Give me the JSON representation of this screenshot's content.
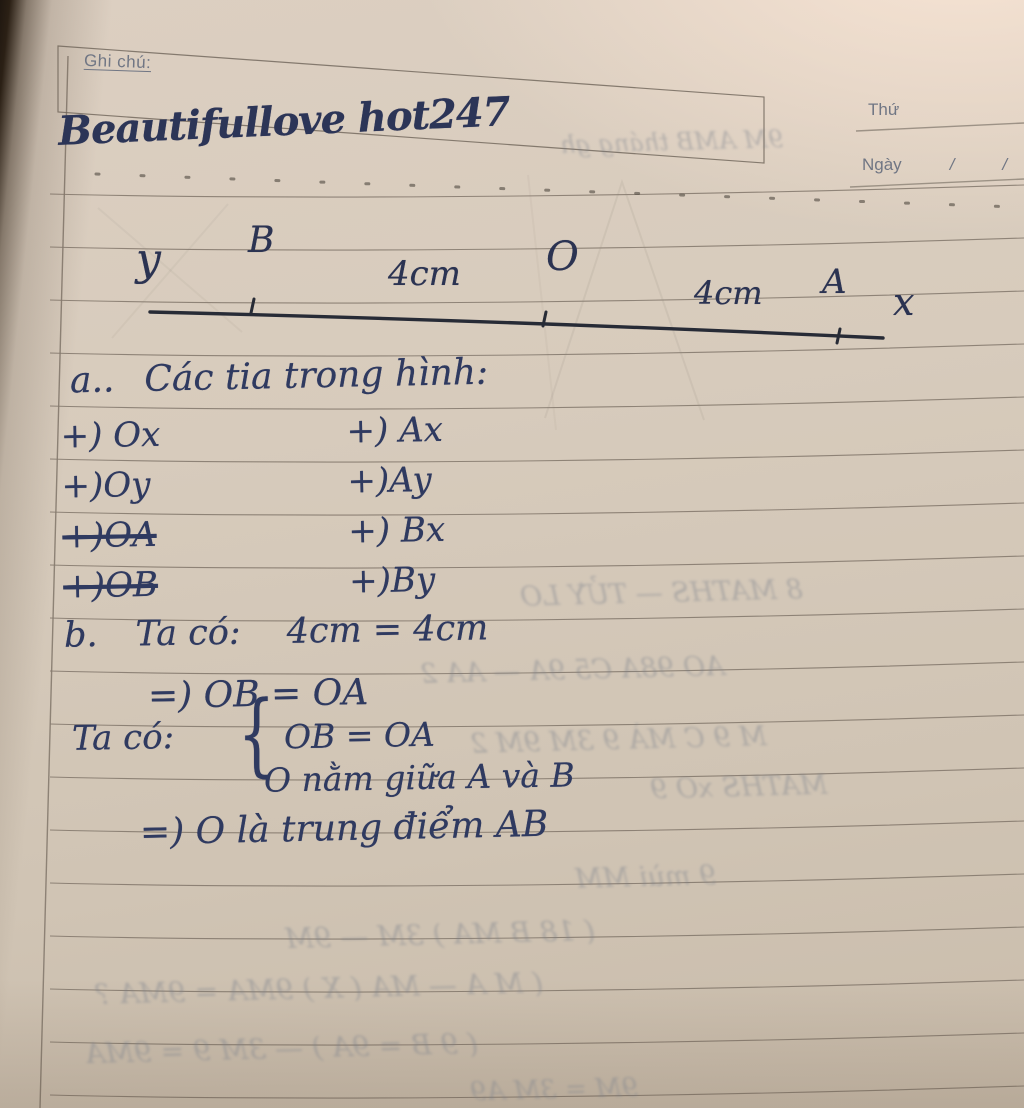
{
  "header": {
    "note_label": "Ghi chú:",
    "day_label": "Thứ",
    "date_label": "Ngày",
    "slash": "/",
    "handwritten_title": "Beautifullove hot247"
  },
  "diagram": {
    "label_y": "y",
    "label_b": "B",
    "label_o": "O",
    "label_a": "A",
    "label_x": "x",
    "segment_left": "4cm",
    "segment_right": "4cm"
  },
  "solution": {
    "part_a_marker": "a..",
    "part_a_text": "Các tia trong hình:",
    "rays_left": [
      {
        "text": "+) Ox"
      },
      {
        "text": "+)Oy"
      },
      {
        "text": "+)OA"
      },
      {
        "text": "+)OB"
      }
    ],
    "rays_right": [
      {
        "text": "+) Ax"
      },
      {
        "text": "+)Ay"
      },
      {
        "text": "+) Bx"
      },
      {
        "text": "+)By"
      }
    ],
    "part_b_marker": "b.",
    "part_b_intro": "Ta có:",
    "part_b_equality": "4cm = 4cm",
    "part_b_implies1": "=)  OB = OA",
    "part_b_intro2": "Ta có:",
    "brace": "{",
    "brace_item_1": "OB = OA",
    "brace_item_2": "O nằm giữa A và B",
    "part_b_implies2": "=)  O là trung điểm AB"
  },
  "bleed_through": [
    {
      "text": "9M AMB tháng gh"
    },
    {
      "text": "8 MATHS — TỬY LO"
    },
    {
      "text": "AO 98A C5 9A — AA 2"
    },
    {
      "text": "M 9 C MÀ 9 3M 9M 2"
    },
    {
      "text": "MATHS xO 9"
    },
    {
      "text": "9 mùi MM"
    },
    {
      "text": "( 18 B MA ) 3M — 9M"
    },
    {
      "text": "( M A — MA ( X )  9MA = 9MA ?"
    },
    {
      "text": "( 9 B = 9A ) — 3M 9 = 9MA"
    },
    {
      "text": "9M = 3M A9"
    }
  ]
}
